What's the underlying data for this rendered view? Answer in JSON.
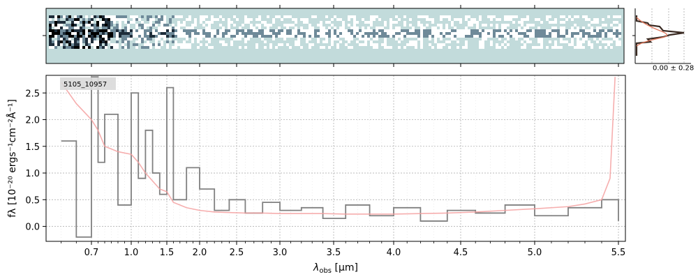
{
  "chart_data": [
    {
      "type": "heatmap",
      "panel": "2d-spectrum",
      "colormap": [
        "#ffffff",
        "#c2dbdb",
        "#6f8a99",
        "#1e2d3a",
        "#000000"
      ],
      "background_color": "#c2dbdb"
    },
    {
      "type": "line",
      "panel": "1d-spectrum",
      "object_label": "5105_10957",
      "xlabel": "λobs [μm]",
      "ylabel": "fλ [10⁻²⁰ ergs⁻¹cm⁻²Å⁻¹]",
      "x_scale": "nonlinear (prism resolution)",
      "x_ticks": [
        0.7,
        1.0,
        1.5,
        2.0,
        2.5,
        3.0,
        3.5,
        4.0,
        4.5,
        5.0,
        5.5
      ],
      "x_tick_labels": [
        "0.7",
        "1.0",
        "1.5",
        "2.0",
        "2.5",
        "3.0",
        "3.5",
        "4.0",
        "4.5",
        "5.0",
        "5.5"
      ],
      "ylim": [
        -0.28,
        2.83
      ],
      "y_ticks": [
        0.0,
        0.5,
        1.0,
        1.5,
        2.0,
        2.5
      ],
      "y_tick_labels": [
        "0.0",
        "0.5",
        "1.0",
        "1.5",
        "2.0",
        "2.5"
      ],
      "grid": true,
      "series": [
        {
          "role": "data",
          "style": "steps",
          "color": "#808080",
          "x": [
            0.6,
            0.65,
            0.7,
            0.75,
            0.8,
            0.9,
            1.0,
            1.1,
            1.2,
            1.3,
            1.4,
            1.5,
            1.6,
            1.8,
            2.0,
            2.2,
            2.4,
            2.6,
            2.8,
            3.0,
            3.2,
            3.4,
            3.6,
            3.8,
            4.0,
            4.2,
            4.4,
            4.6,
            4.8,
            5.0,
            5.2,
            5.4,
            5.5
          ],
          "y": [
            1.6,
            -0.2,
            2.8,
            1.2,
            2.1,
            0.4,
            2.5,
            0.9,
            1.8,
            1.0,
            0.6,
            2.6,
            0.5,
            1.1,
            0.7,
            0.3,
            0.5,
            0.25,
            0.45,
            0.3,
            0.35,
            0.15,
            0.4,
            0.2,
            0.35,
            0.1,
            0.3,
            0.25,
            0.4,
            0.2,
            0.35,
            0.5,
            0.1
          ]
        },
        {
          "role": "model",
          "style": "line",
          "color": "#f4a0a0",
          "x": [
            0.6,
            0.65,
            0.7,
            0.75,
            0.8,
            0.9,
            1.0,
            1.1,
            1.2,
            1.3,
            1.4,
            1.5,
            1.6,
            1.8,
            2.0,
            2.2,
            2.4,
            2.6,
            2.8,
            3.0,
            3.2,
            3.4,
            3.6,
            3.8,
            4.0,
            4.2,
            4.4,
            4.6,
            4.8,
            5.0,
            5.2,
            5.3,
            5.4,
            5.45,
            5.48
          ],
          "y": [
            2.7,
            2.3,
            2.0,
            1.8,
            1.5,
            1.4,
            1.35,
            1.2,
            1.0,
            0.85,
            0.7,
            0.65,
            0.45,
            0.35,
            0.3,
            0.27,
            0.26,
            0.25,
            0.25,
            0.24,
            0.24,
            0.24,
            0.23,
            0.23,
            0.23,
            0.24,
            0.25,
            0.27,
            0.3,
            0.33,
            0.37,
            0.42,
            0.5,
            0.9,
            2.8
          ]
        }
      ]
    },
    {
      "type": "line",
      "panel": "spatial-profile",
      "annotation": "0.00 ± 0.28",
      "profile_color": "#3a2a22",
      "fit_color": "#e07a5f"
    }
  ]
}
